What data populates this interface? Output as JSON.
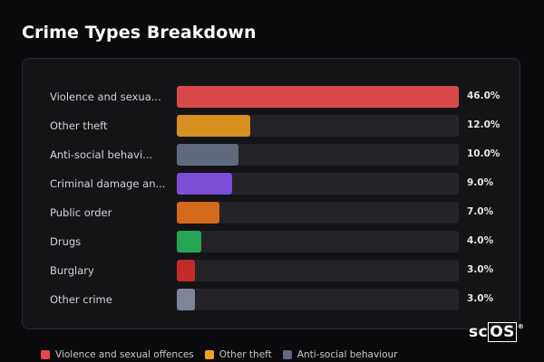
{
  "title": "Crime Types Breakdown",
  "chart_data": {
    "type": "bar",
    "orientation": "horizontal",
    "title": "Crime Types Breakdown",
    "categories": [
      "Violence and sexua...",
      "Other theft",
      "Anti-social behavi...",
      "Criminal damage an...",
      "Public order",
      "Drugs",
      "Burglary",
      "Other crime"
    ],
    "values": [
      46.0,
      12.0,
      10.0,
      9.0,
      7.0,
      4.0,
      3.0,
      3.0
    ],
    "value_labels": [
      "46.0%",
      "12.0%",
      "10.0%",
      "9.0%",
      "7.0%",
      "4.0%",
      "3.0%",
      "3.0%"
    ],
    "colors": [
      "#d94848",
      "#d69020",
      "#5f6b7d",
      "#7b4fd6",
      "#d46a1c",
      "#26a655",
      "#c52a2a",
      "#7d8596"
    ],
    "xlim": [
      0,
      46.0
    ],
    "legend_position": "bottom"
  },
  "legend": [
    {
      "label": "Violence and sexual offences",
      "color": "#e04848"
    },
    {
      "label": "Other theft",
      "color": "#f0a020"
    },
    {
      "label": "Anti-social behaviour",
      "color": "#5f6b7d"
    }
  ],
  "logo": {
    "prefix": "sc",
    "boxed": "OS",
    "mark": "®"
  }
}
